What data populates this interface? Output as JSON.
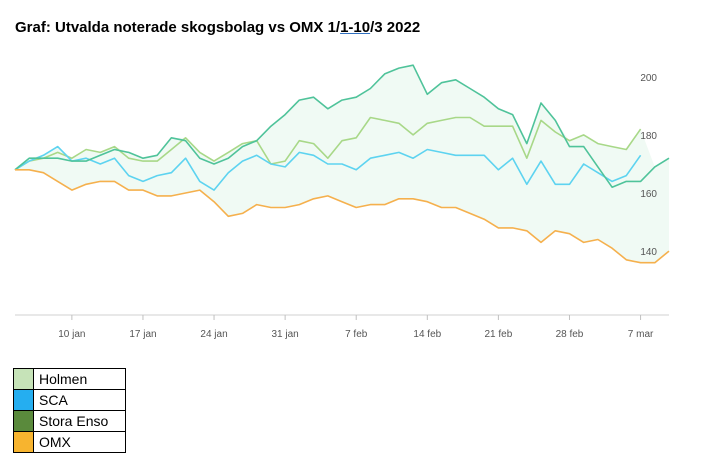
{
  "title": {
    "prefix": "Graf: Utvalda noterade skogsbolag vs OMX 1/",
    "underlined": "1-10",
    "suffix": "/3 2022"
  },
  "chart_data": {
    "type": "line",
    "title": "Graf: Utvalda noterade skogsbolag vs OMX 1/1-10/3 2022",
    "x_tick_labels": [
      "10 jan",
      "17 jan",
      "24 jan",
      "31 jan",
      "7 feb",
      "14 feb",
      "21 feb",
      "28 feb",
      "7 mar"
    ],
    "x_tick_index": [
      4,
      9,
      14,
      19,
      24,
      29,
      34,
      39,
      44
    ],
    "y_ticks": [
      140,
      160,
      180,
      200
    ],
    "ylim": [
      118,
      212
    ],
    "grid": false,
    "y_axis_side": "right",
    "legend_position": "bottom-left",
    "series": [
      {
        "name": "Holmen",
        "color": "#a8d888",
        "values": [
          168,
          171,
          172,
          174,
          172,
          175,
          174,
          176,
          172,
          171,
          171,
          175,
          179,
          174,
          171,
          174,
          177,
          178,
          170,
          171,
          178,
          177,
          172,
          178,
          179,
          186,
          185,
          184,
          180,
          184,
          185,
          186,
          186,
          183,
          183,
          183,
          172,
          185,
          181,
          178,
          180,
          177,
          176,
          175,
          182
        ]
      },
      {
        "name": "SCA",
        "color": "#5dd3f0",
        "values": [
          168,
          171,
          173,
          176,
          171,
          172,
          170,
          172,
          166,
          164,
          166,
          167,
          172,
          164,
          161,
          167,
          171,
          173,
          170,
          169,
          174,
          173,
          170,
          170,
          168,
          172,
          173,
          174,
          172,
          175,
          174,
          173,
          173,
          173,
          168,
          172,
          163,
          171,
          163,
          163,
          170,
          167,
          164,
          166,
          173
        ]
      },
      {
        "name": "Stora Enso",
        "color": "#4fc39a",
        "values": [
          168,
          172,
          172,
          172,
          171,
          171,
          173,
          175,
          174,
          172,
          173,
          179,
          178,
          172,
          170,
          172,
          176,
          178,
          183,
          187,
          192,
          193,
          189,
          192,
          193,
          196,
          201,
          203,
          204,
          194,
          198,
          199,
          196,
          193,
          189,
          187,
          177,
          191,
          185,
          176,
          176,
          169,
          162,
          164,
          164,
          169,
          172
        ]
      },
      {
        "name": "OMX",
        "color": "#f5b04d",
        "values": [
          168,
          168,
          167,
          164,
          161,
          163,
          164,
          164,
          161,
          161,
          159,
          159,
          160,
          161,
          157,
          152,
          153,
          156,
          155,
          155,
          156,
          158,
          159,
          157,
          155,
          156,
          156,
          158,
          158,
          157,
          155,
          155,
          153,
          151,
          148,
          148,
          147,
          143,
          147,
          146,
          143,
          144,
          141,
          137,
          136,
          136,
          140
        ]
      }
    ],
    "band_fill": "#f0faf4"
  },
  "legend": [
    {
      "label": "Holmen",
      "color": "#c6e3b8"
    },
    {
      "label": "SCA",
      "color": "#25aef0"
    },
    {
      "label": "Stora Enso",
      "color": "#5a8a3c"
    },
    {
      "label": "OMX",
      "color": "#f7b42f"
    }
  ]
}
